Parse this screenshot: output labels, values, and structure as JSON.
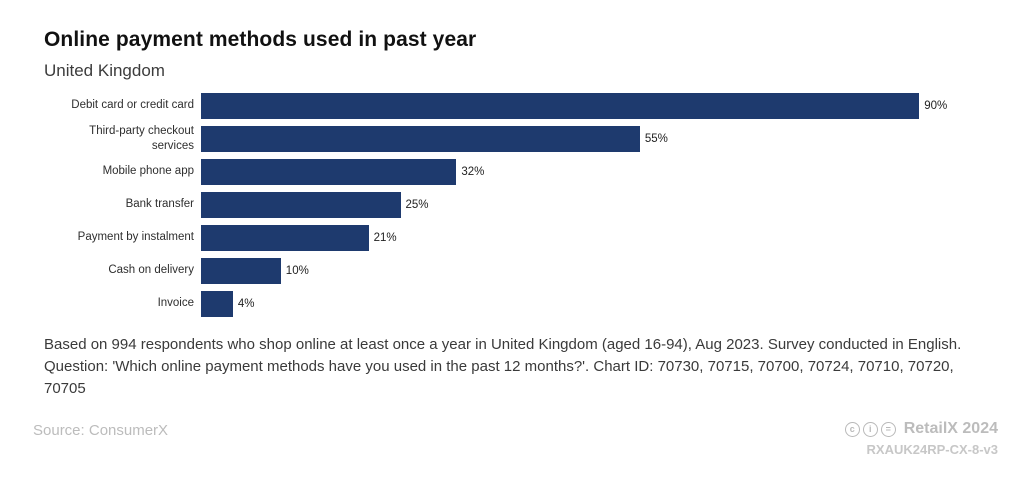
{
  "header": {
    "title": "Online payment methods used in past year",
    "subtitle": "United Kingdom"
  },
  "chart_data": {
    "type": "bar",
    "orientation": "horizontal",
    "title": "Online payment methods used in past year",
    "subtitle": "United Kingdom",
    "categories": [
      "Debit card or credit card",
      "Third-party checkout services",
      "Mobile phone app",
      "Bank transfer",
      "Payment by instalment",
      "Cash on delivery",
      "Invoice"
    ],
    "values": [
      90,
      55,
      32,
      25,
      21,
      10,
      4
    ],
    "value_labels": [
      "90%",
      "55%",
      "32%",
      "25%",
      "21%",
      "10%",
      "4%"
    ],
    "xlim": [
      0,
      100
    ],
    "bar_color": "#1e3a6e",
    "grid": false,
    "legend": false
  },
  "footnote": "Based on 994 respondents who shop online at least once a year in United Kingdom (aged 16-94), Aug 2023. Survey conducted in English. Question: 'Which online payment methods have you used in the past 12 months?'. Chart ID: 70730, 70715, 70700, 70724, 70710, 70720, 70705",
  "footer": {
    "source": "Source: ConsumerX",
    "brand": "RetailX 2024",
    "chart_code": "RXAUK24RP-CX-8-v3",
    "license_icons": [
      {
        "name": "cc-icon",
        "glyph": "c"
      },
      {
        "name": "attribution-icon",
        "glyph": "i"
      },
      {
        "name": "nd-icon",
        "glyph": "="
      }
    ]
  }
}
